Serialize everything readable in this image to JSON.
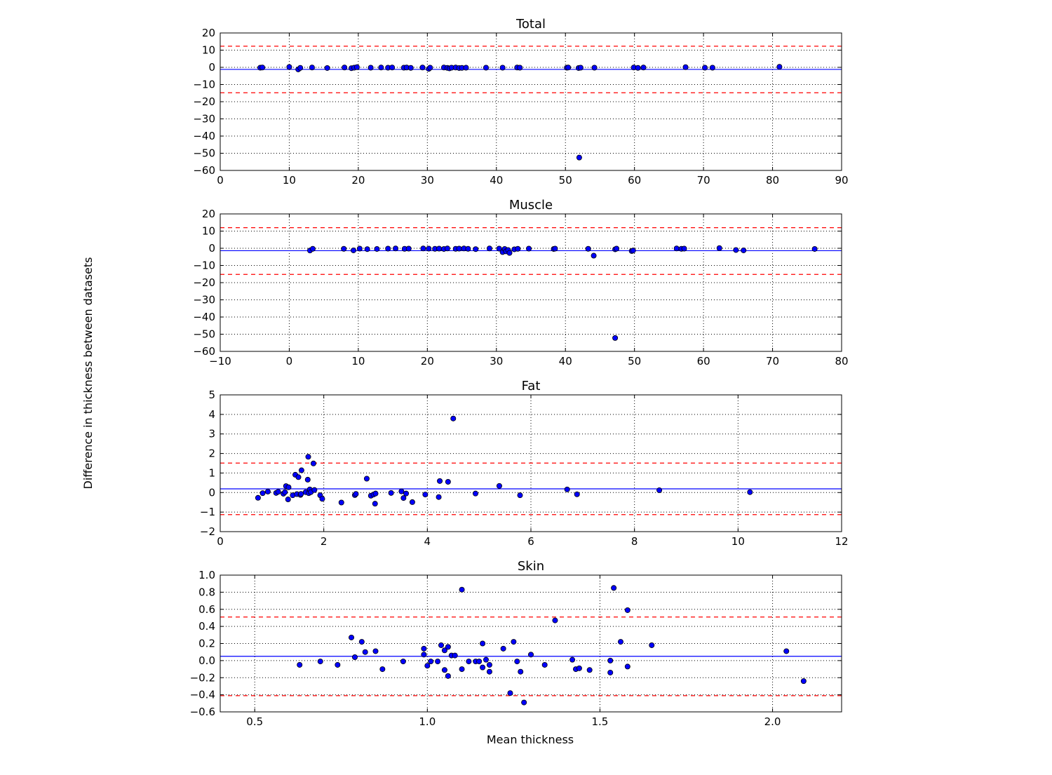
{
  "figure": {
    "ylabel": "Difference in thickness between datasets",
    "xlabel": "Mean thickness"
  },
  "colors": {
    "point_fill": "#0000ff",
    "point_edge": "#000000",
    "mean_line": "#0000ff",
    "limit_line": "#ff0000",
    "grid": "#000000"
  },
  "chart_data": [
    {
      "type": "scatter",
      "title": "Total",
      "xlim": [
        0,
        90
      ],
      "ylim": [
        -60,
        20
      ],
      "xticks": [
        0,
        10,
        20,
        30,
        40,
        50,
        60,
        70,
        80,
        90
      ],
      "yticks": [
        -60,
        -50,
        -40,
        -30,
        -20,
        -10,
        0,
        10,
        20
      ],
      "xtick_labels": [
        "0",
        "10",
        "20",
        "30",
        "40",
        "50",
        "60",
        "70",
        "80",
        "90"
      ],
      "ytick_labels": [
        "−60",
        "−50",
        "−40",
        "−30",
        "−20",
        "−10",
        "0",
        "10",
        "20"
      ],
      "mean": -1.2,
      "upper_limit": 12.3,
      "lower_limit": -14.8,
      "grid": true,
      "points": [
        [
          5.8,
          -0.2
        ],
        [
          6.1,
          -0.1
        ],
        [
          10.0,
          0.2
        ],
        [
          11.3,
          -1.2
        ],
        [
          11.6,
          -0.3
        ],
        [
          13.3,
          -0.1
        ],
        [
          15.5,
          -0.4
        ],
        [
          18.0,
          -0.1
        ],
        [
          19.0,
          -0.5
        ],
        [
          19.4,
          -0.2
        ],
        [
          19.8,
          0.1
        ],
        [
          21.8,
          -0.2
        ],
        [
          23.3,
          -0.1
        ],
        [
          24.3,
          -0.2
        ],
        [
          24.9,
          -0.1
        ],
        [
          26.6,
          -0.2
        ],
        [
          27.0,
          -0.1
        ],
        [
          27.6,
          -0.3
        ],
        [
          29.3,
          -0.1
        ],
        [
          30.2,
          -0.9
        ],
        [
          30.4,
          -0.2
        ],
        [
          32.4,
          -0.1
        ],
        [
          32.9,
          -0.3
        ],
        [
          33.2,
          -0.6
        ],
        [
          33.5,
          -0.2
        ],
        [
          34.1,
          -0.1
        ],
        [
          34.6,
          -0.4
        ],
        [
          35.0,
          -0.3
        ],
        [
          35.6,
          -0.2
        ],
        [
          38.5,
          -0.2
        ],
        [
          40.9,
          -0.2
        ],
        [
          43.0,
          -0.1
        ],
        [
          43.4,
          -0.2
        ],
        [
          50.2,
          -0.2
        ],
        [
          50.4,
          -0.1
        ],
        [
          51.9,
          -0.4
        ],
        [
          52.2,
          -0.2
        ],
        [
          54.2,
          -0.2
        ],
        [
          59.9,
          -0.1
        ],
        [
          60.5,
          -0.3
        ],
        [
          61.3,
          -0.1
        ],
        [
          67.4,
          0.1
        ],
        [
          70.2,
          -0.2
        ],
        [
          71.3,
          -0.2
        ],
        [
          81.0,
          0.3
        ],
        [
          52.0,
          -52.5
        ]
      ]
    },
    {
      "type": "scatter",
      "title": "Muscle",
      "xlim": [
        -10,
        80
      ],
      "ylim": [
        -60,
        20
      ],
      "xticks": [
        -10,
        0,
        10,
        20,
        30,
        40,
        50,
        60,
        70,
        80
      ],
      "yticks": [
        -60,
        -50,
        -40,
        -30,
        -20,
        -10,
        0,
        10,
        20
      ],
      "xtick_labels": [
        "−10",
        "0",
        "10",
        "20",
        "30",
        "40",
        "50",
        "60",
        "70",
        "80"
      ],
      "ytick_labels": [
        "−60",
        "−50",
        "−40",
        "−30",
        "−20",
        "−10",
        "0",
        "10",
        "20"
      ],
      "mean": -1.4,
      "upper_limit": 12.0,
      "lower_limit": -15.2,
      "grid": true,
      "points": [
        [
          3.0,
          -1.3
        ],
        [
          3.4,
          -0.3
        ],
        [
          7.9,
          -0.3
        ],
        [
          9.3,
          -1.2
        ],
        [
          10.2,
          -0.2
        ],
        [
          11.3,
          -0.5
        ],
        [
          12.7,
          -0.4
        ],
        [
          14.3,
          -0.2
        ],
        [
          15.4,
          -0.1
        ],
        [
          16.7,
          -0.3
        ],
        [
          17.3,
          -0.2
        ],
        [
          19.4,
          -0.1
        ],
        [
          20.2,
          -0.2
        ],
        [
          21.1,
          -0.3
        ],
        [
          21.7,
          -0.2
        ],
        [
          22.4,
          -0.4
        ],
        [
          22.9,
          -0.1
        ],
        [
          24.1,
          -0.3
        ],
        [
          24.6,
          -0.2
        ],
        [
          25.3,
          -0.1
        ],
        [
          25.9,
          -0.3
        ],
        [
          27.0,
          -0.5
        ],
        [
          29.0,
          -0.1
        ],
        [
          30.4,
          -0.2
        ],
        [
          30.9,
          -2.2
        ],
        [
          31.2,
          -0.4
        ],
        [
          31.4,
          -1.8
        ],
        [
          31.7,
          -1.0
        ],
        [
          31.9,
          -2.7
        ],
        [
          32.6,
          -0.6
        ],
        [
          33.1,
          -0.3
        ],
        [
          34.7,
          -0.2
        ],
        [
          38.3,
          -0.4
        ],
        [
          38.5,
          -0.2
        ],
        [
          43.3,
          -0.3
        ],
        [
          44.1,
          -4.3
        ],
        [
          47.2,
          -0.6
        ],
        [
          47.4,
          -0.2
        ],
        [
          49.6,
          -1.6
        ],
        [
          49.8,
          -1.3
        ],
        [
          56.1,
          -0.1
        ],
        [
          56.8,
          -0.3
        ],
        [
          57.2,
          -0.2
        ],
        [
          62.3,
          0.1
        ],
        [
          64.7,
          -1.0
        ],
        [
          65.8,
          -1.2
        ],
        [
          76.1,
          -0.4
        ],
        [
          47.2,
          -52.2
        ]
      ]
    },
    {
      "type": "scatter",
      "title": "Fat",
      "xlim": [
        0,
        12
      ],
      "ylim": [
        -2,
        5
      ],
      "xticks": [
        0,
        2,
        4,
        6,
        8,
        10,
        12
      ],
      "yticks": [
        -2,
        -1,
        0,
        1,
        2,
        3,
        4,
        5
      ],
      "xtick_labels": [
        "0",
        "2",
        "4",
        "6",
        "8",
        "10",
        "12"
      ],
      "ytick_labels": [
        "−2",
        "−1",
        "0",
        "1",
        "2",
        "3",
        "4",
        "5"
      ],
      "mean": 0.19,
      "upper_limit": 1.51,
      "lower_limit": -1.13,
      "grid": true,
      "points": [
        [
          0.73,
          -0.27
        ],
        [
          0.82,
          -0.03
        ],
        [
          0.92,
          0.05
        ],
        [
          1.08,
          -0.02
        ],
        [
          1.12,
          0.04
        ],
        [
          1.22,
          -0.06
        ],
        [
          1.25,
          0.02
        ],
        [
          1.27,
          0.33
        ],
        [
          1.31,
          -0.35
        ],
        [
          1.32,
          0.27
        ],
        [
          1.4,
          -0.14
        ],
        [
          1.45,
          0.91
        ],
        [
          1.48,
          -0.08
        ],
        [
          1.51,
          0.79
        ],
        [
          1.55,
          -0.12
        ],
        [
          1.56,
          -0.07
        ],
        [
          1.57,
          1.14
        ],
        [
          1.65,
          0.02
        ],
        [
          1.69,
          0.66
        ],
        [
          1.7,
          1.83
        ],
        [
          1.71,
          -0.03
        ],
        [
          1.73,
          0.16
        ],
        [
          1.75,
          0.02
        ],
        [
          1.8,
          1.49
        ],
        [
          1.82,
          0.13
        ],
        [
          1.93,
          -0.14
        ],
        [
          1.97,
          -0.32
        ],
        [
          2.34,
          -0.51
        ],
        [
          2.6,
          -0.13
        ],
        [
          2.62,
          -0.07
        ],
        [
          2.83,
          0.71
        ],
        [
          2.91,
          -0.16
        ],
        [
          2.96,
          -0.1
        ],
        [
          2.99,
          -0.57
        ],
        [
          3.0,
          -0.05
        ],
        [
          3.3,
          -0.02
        ],
        [
          3.5,
          0.06
        ],
        [
          3.54,
          -0.28
        ],
        [
          3.59,
          -0.05
        ],
        [
          3.71,
          -0.49
        ],
        [
          3.96,
          -0.1
        ],
        [
          4.22,
          -0.23
        ],
        [
          4.24,
          0.59
        ],
        [
          4.4,
          0.55
        ],
        [
          4.5,
          3.79
        ],
        [
          4.93,
          -0.05
        ],
        [
          5.39,
          0.34
        ],
        [
          5.79,
          -0.14
        ],
        [
          6.7,
          0.16
        ],
        [
          6.89,
          -0.09
        ],
        [
          8.48,
          0.12
        ],
        [
          10.23,
          0.02
        ]
      ]
    },
    {
      "type": "scatter",
      "title": "Skin",
      "xlim": [
        0.4,
        2.2
      ],
      "ylim": [
        -0.6,
        1.0
      ],
      "xticks": [
        0.5,
        1.0,
        1.5,
        2.0
      ],
      "yticks": [
        -0.6,
        -0.4,
        -0.2,
        0.0,
        0.2,
        0.4,
        0.6,
        0.8,
        1.0
      ],
      "xtick_labels": [
        "0.5",
        "1.0",
        "1.5",
        "2.0"
      ],
      "ytick_labels": [
        "−0.6",
        "−0.4",
        "−0.2",
        "0.0",
        "0.2",
        "0.4",
        "0.6",
        "0.8",
        "1.0"
      ],
      "mean": 0.05,
      "upper_limit": 0.51,
      "lower_limit": -0.41,
      "grid": true,
      "points": [
        [
          0.63,
          -0.05
        ],
        [
          0.69,
          -0.01
        ],
        [
          0.74,
          -0.05
        ],
        [
          0.78,
          0.27
        ],
        [
          0.79,
          0.04
        ],
        [
          0.81,
          0.22
        ],
        [
          0.82,
          0.1
        ],
        [
          0.85,
          0.11
        ],
        [
          0.87,
          -0.1
        ],
        [
          0.93,
          -0.01
        ],
        [
          0.99,
          0.07
        ],
        [
          0.99,
          0.14
        ],
        [
          1.0,
          -0.06
        ],
        [
          1.01,
          -0.01
        ],
        [
          1.03,
          -0.01
        ],
        [
          1.04,
          0.18
        ],
        [
          1.05,
          -0.11
        ],
        [
          1.05,
          0.12
        ],
        [
          1.06,
          0.16
        ],
        [
          1.06,
          -0.18
        ],
        [
          1.07,
          0.06
        ],
        [
          1.08,
          0.06
        ],
        [
          1.1,
          -0.1
        ],
        [
          1.1,
          0.83
        ],
        [
          1.12,
          -0.01
        ],
        [
          1.14,
          -0.01
        ],
        [
          1.15,
          -0.01
        ],
        [
          1.16,
          0.2
        ],
        [
          1.16,
          -0.08
        ],
        [
          1.17,
          0.01
        ],
        [
          1.18,
          -0.05
        ],
        [
          1.18,
          -0.13
        ],
        [
          1.22,
          0.14
        ],
        [
          1.24,
          -0.38
        ],
        [
          1.25,
          0.22
        ],
        [
          1.26,
          -0.01
        ],
        [
          1.27,
          -0.13
        ],
        [
          1.28,
          -0.49
        ],
        [
          1.3,
          0.07
        ],
        [
          1.34,
          -0.05
        ],
        [
          1.37,
          0.47
        ],
        [
          1.42,
          0.01
        ],
        [
          1.43,
          -0.1
        ],
        [
          1.44,
          -0.09
        ],
        [
          1.47,
          -0.11
        ],
        [
          1.53,
          0.0
        ],
        [
          1.53,
          -0.14
        ],
        [
          1.54,
          0.85
        ],
        [
          1.56,
          0.22
        ],
        [
          1.58,
          -0.07
        ],
        [
          1.58,
          0.59
        ],
        [
          1.65,
          0.18
        ],
        [
          2.04,
          0.11
        ],
        [
          2.09,
          -0.24
        ]
      ]
    }
  ]
}
